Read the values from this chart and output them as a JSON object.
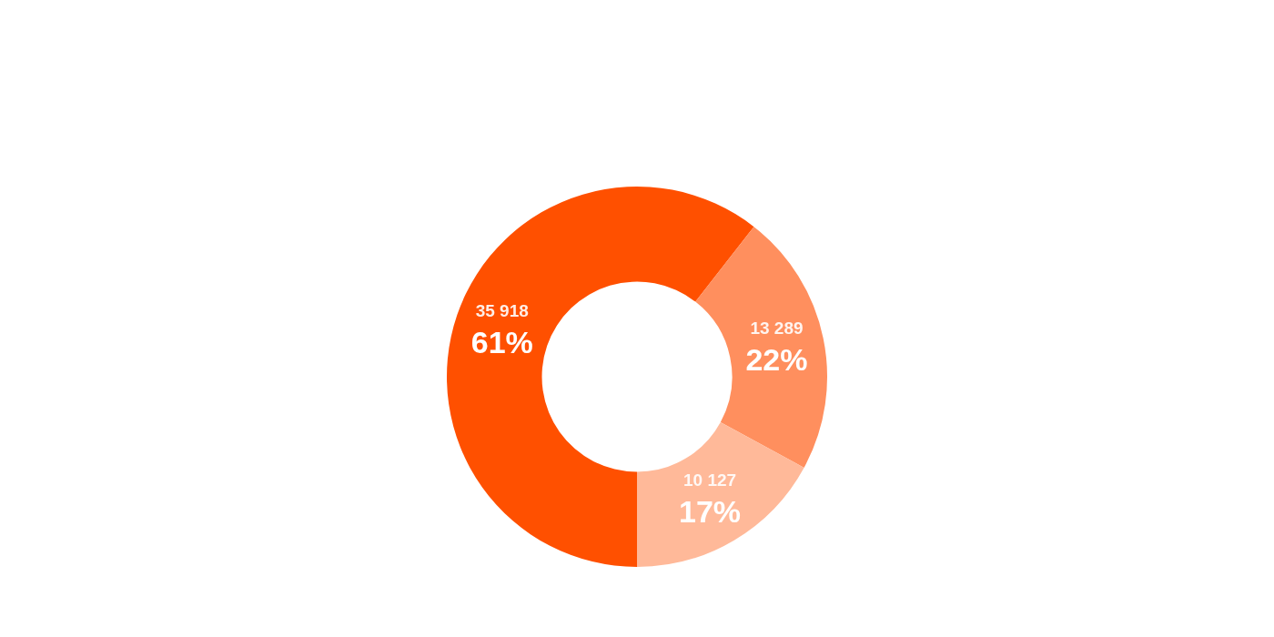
{
  "chart_data": {
    "type": "donut",
    "categories": [
      null,
      null,
      null
    ],
    "values": [
      35918,
      13289,
      10127
    ],
    "colors": [
      "#ff5000",
      "#ff8f5e",
      "#ffb999"
    ],
    "value_labels": [
      "35 918\n61%",
      "13 289\n22%",
      "10 127\n17%"
    ],
    "legend": false
  }
}
